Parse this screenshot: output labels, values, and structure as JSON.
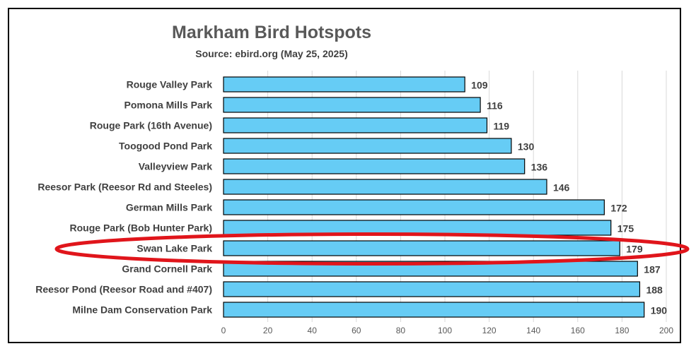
{
  "chart_data": {
    "type": "bar",
    "orientation": "horizontal",
    "title": "Markham Bird Hotspots",
    "subtitle": "Source: ebird.org (May 25, 2025)",
    "categories": [
      "Rouge Valley Park",
      "Pomona Mills Park",
      "Rouge Park (16th Avenue)",
      "Toogood Pond Park",
      "Valleyview Park",
      "Reesor Park (Reesor Rd and Steeles)",
      "German Mills Park",
      "Rouge Park (Bob Hunter Park)",
      "Swan Lake Park",
      "Grand Cornell Park",
      "Reesor Pond (Reesor Road and #407)",
      "Milne Dam Conservation Park"
    ],
    "values": [
      109,
      116,
      119,
      130,
      136,
      146,
      172,
      175,
      179,
      187,
      188,
      190
    ],
    "xlim": [
      0,
      200
    ],
    "xticks": [
      0,
      20,
      40,
      60,
      80,
      100,
      120,
      140,
      160,
      180,
      200
    ],
    "grid": "vertical",
    "highlighted_category": "Swan Lake Park",
    "colors": {
      "bar_fill": "#66CCF5",
      "bar_stroke": "#000000",
      "highlight_ellipse": "#E0151B",
      "grid": "#D9D9D9"
    }
  }
}
